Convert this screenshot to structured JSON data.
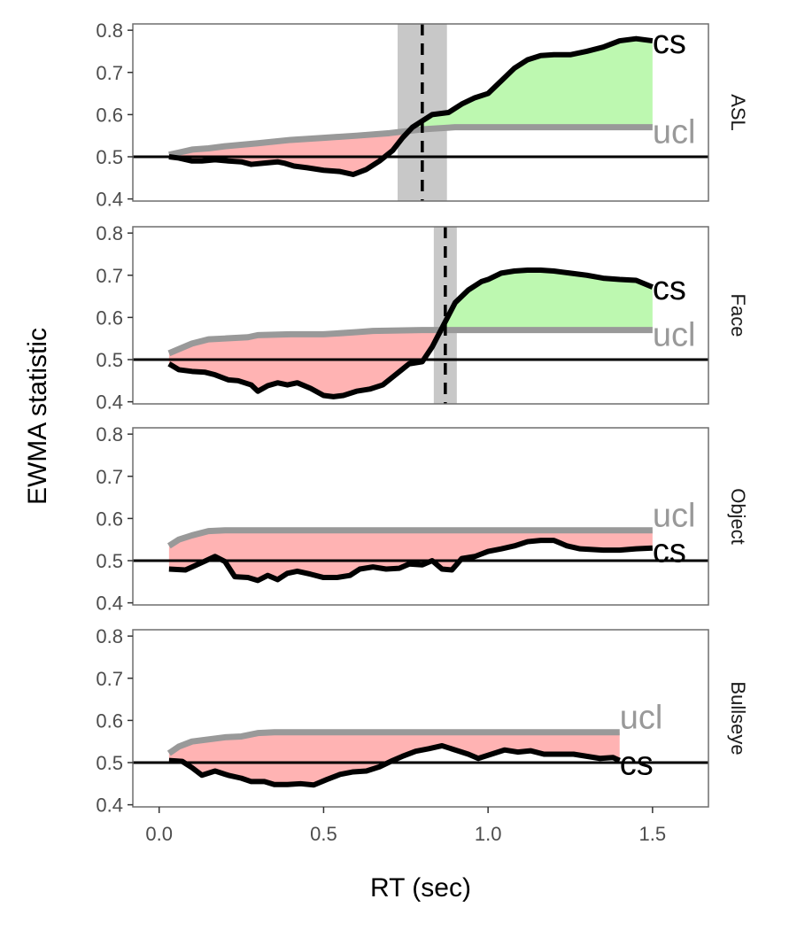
{
  "chart_data": {
    "type": "line",
    "xlabel": "RT (sec)",
    "ylabel": "EWMA statistic",
    "xlim": [
      -0.08,
      1.67
    ],
    "ylim": [
      0.395,
      0.815
    ],
    "x_ticks": [
      0.0,
      0.5,
      1.0,
      1.5
    ],
    "x_tick_labels": [
      "0.0",
      "0.5",
      "1.0",
      "1.5"
    ],
    "y_ticks": [
      0.4,
      0.5,
      0.6,
      0.7,
      0.8
    ],
    "y_tick_labels": [
      "0.4",
      "0.5",
      "0.6",
      "0.7",
      "0.8"
    ],
    "reference_line": 0.5,
    "grid": false,
    "colors": {
      "cs_line": "#000000",
      "ucl_line": "#999999",
      "fill_below": "#ffb3b3",
      "fill_above": "#bdf8b0",
      "band": "#c8c8c8",
      "panel_border": "#6e6e6e"
    },
    "end_labels": {
      "cs": "cs",
      "ucl": "ucl"
    },
    "panels": [
      {
        "label": "ASL",
        "cutoff": 0.8,
        "band": [
          0.725,
          0.875
        ],
        "cs": [
          [
            0.03,
            0.5
          ],
          [
            0.06,
            0.497
          ],
          [
            0.1,
            0.49
          ],
          [
            0.13,
            0.49
          ],
          [
            0.17,
            0.493
          ],
          [
            0.21,
            0.49
          ],
          [
            0.25,
            0.488
          ],
          [
            0.28,
            0.482
          ],
          [
            0.32,
            0.485
          ],
          [
            0.36,
            0.488
          ],
          [
            0.38,
            0.485
          ],
          [
            0.41,
            0.478
          ],
          [
            0.45,
            0.474
          ],
          [
            0.5,
            0.468
          ],
          [
            0.55,
            0.465
          ],
          [
            0.59,
            0.458
          ],
          [
            0.63,
            0.47
          ],
          [
            0.67,
            0.49
          ],
          [
            0.71,
            0.515
          ],
          [
            0.74,
            0.545
          ],
          [
            0.77,
            0.57
          ],
          [
            0.8,
            0.585
          ],
          [
            0.83,
            0.6
          ],
          [
            0.88,
            0.605
          ],
          [
            0.92,
            0.625
          ],
          [
            0.96,
            0.64
          ],
          [
            1.0,
            0.65
          ],
          [
            1.04,
            0.68
          ],
          [
            1.08,
            0.71
          ],
          [
            1.12,
            0.73
          ],
          [
            1.16,
            0.74
          ],
          [
            1.2,
            0.742
          ],
          [
            1.25,
            0.742
          ],
          [
            1.3,
            0.75
          ],
          [
            1.35,
            0.76
          ],
          [
            1.4,
            0.775
          ],
          [
            1.45,
            0.78
          ],
          [
            1.5,
            0.775
          ]
        ],
        "ucl": [
          [
            0.03,
            0.505
          ],
          [
            0.06,
            0.51
          ],
          [
            0.1,
            0.517
          ],
          [
            0.15,
            0.52
          ],
          [
            0.2,
            0.525
          ],
          [
            0.3,
            0.532
          ],
          [
            0.4,
            0.54
          ],
          [
            0.5,
            0.545
          ],
          [
            0.6,
            0.55
          ],
          [
            0.7,
            0.556
          ],
          [
            0.8,
            0.565
          ],
          [
            0.9,
            0.57
          ],
          [
            1.0,
            0.57
          ],
          [
            1.5,
            0.57
          ]
        ]
      },
      {
        "label": "Face",
        "cutoff": 0.87,
        "band": [
          0.835,
          0.905
        ],
        "cs": [
          [
            0.03,
            0.49
          ],
          [
            0.06,
            0.476
          ],
          [
            0.1,
            0.472
          ],
          [
            0.14,
            0.47
          ],
          [
            0.17,
            0.464
          ],
          [
            0.21,
            0.452
          ],
          [
            0.24,
            0.45
          ],
          [
            0.28,
            0.44
          ],
          [
            0.3,
            0.425
          ],
          [
            0.33,
            0.438
          ],
          [
            0.36,
            0.445
          ],
          [
            0.39,
            0.44
          ],
          [
            0.42,
            0.445
          ],
          [
            0.46,
            0.432
          ],
          [
            0.5,
            0.415
          ],
          [
            0.53,
            0.412
          ],
          [
            0.56,
            0.415
          ],
          [
            0.6,
            0.425
          ],
          [
            0.64,
            0.43
          ],
          [
            0.68,
            0.44
          ],
          [
            0.72,
            0.465
          ],
          [
            0.76,
            0.49
          ],
          [
            0.8,
            0.495
          ],
          [
            0.83,
            0.53
          ],
          [
            0.87,
            0.59
          ],
          [
            0.9,
            0.635
          ],
          [
            0.94,
            0.665
          ],
          [
            0.98,
            0.685
          ],
          [
            1.0,
            0.69
          ],
          [
            1.04,
            0.705
          ],
          [
            1.08,
            0.71
          ],
          [
            1.12,
            0.712
          ],
          [
            1.16,
            0.712
          ],
          [
            1.2,
            0.71
          ],
          [
            1.25,
            0.705
          ],
          [
            1.3,
            0.7
          ],
          [
            1.35,
            0.693
          ],
          [
            1.4,
            0.69
          ],
          [
            1.45,
            0.688
          ],
          [
            1.5,
            0.672
          ]
        ],
        "ucl": [
          [
            0.03,
            0.515
          ],
          [
            0.06,
            0.525
          ],
          [
            0.1,
            0.538
          ],
          [
            0.15,
            0.548
          ],
          [
            0.2,
            0.55
          ],
          [
            0.27,
            0.553
          ],
          [
            0.3,
            0.558
          ],
          [
            0.4,
            0.56
          ],
          [
            0.5,
            0.56
          ],
          [
            0.6,
            0.565
          ],
          [
            0.65,
            0.568
          ],
          [
            0.8,
            0.57
          ],
          [
            0.9,
            0.57
          ],
          [
            1.5,
            0.57
          ]
        ]
      },
      {
        "label": "Object",
        "cs": [
          [
            0.03,
            0.48
          ],
          [
            0.08,
            0.478
          ],
          [
            0.12,
            0.492
          ],
          [
            0.17,
            0.51
          ],
          [
            0.2,
            0.498
          ],
          [
            0.23,
            0.462
          ],
          [
            0.27,
            0.46
          ],
          [
            0.3,
            0.453
          ],
          [
            0.33,
            0.465
          ],
          [
            0.36,
            0.455
          ],
          [
            0.39,
            0.47
          ],
          [
            0.42,
            0.475
          ],
          [
            0.46,
            0.468
          ],
          [
            0.5,
            0.46
          ],
          [
            0.54,
            0.46
          ],
          [
            0.58,
            0.465
          ],
          [
            0.61,
            0.48
          ],
          [
            0.65,
            0.485
          ],
          [
            0.69,
            0.48
          ],
          [
            0.73,
            0.482
          ],
          [
            0.76,
            0.492
          ],
          [
            0.8,
            0.49
          ],
          [
            0.83,
            0.5
          ],
          [
            0.86,
            0.48
          ],
          [
            0.89,
            0.478
          ],
          [
            0.92,
            0.505
          ],
          [
            0.96,
            0.51
          ],
          [
            1.0,
            0.522
          ],
          [
            1.04,
            0.528
          ],
          [
            1.08,
            0.535
          ],
          [
            1.12,
            0.545
          ],
          [
            1.16,
            0.548
          ],
          [
            1.2,
            0.548
          ],
          [
            1.24,
            0.535
          ],
          [
            1.28,
            0.528
          ],
          [
            1.35,
            0.525
          ],
          [
            1.4,
            0.525
          ],
          [
            1.45,
            0.528
          ],
          [
            1.5,
            0.53
          ]
        ],
        "ucl": [
          [
            0.03,
            0.535
          ],
          [
            0.06,
            0.55
          ],
          [
            0.1,
            0.56
          ],
          [
            0.15,
            0.57
          ],
          [
            0.2,
            0.572
          ],
          [
            0.3,
            0.572
          ],
          [
            1.5,
            0.572
          ]
        ]
      },
      {
        "label": "Bullseye",
        "cs": [
          [
            0.03,
            0.505
          ],
          [
            0.07,
            0.503
          ],
          [
            0.1,
            0.488
          ],
          [
            0.13,
            0.47
          ],
          [
            0.17,
            0.48
          ],
          [
            0.21,
            0.47
          ],
          [
            0.25,
            0.463
          ],
          [
            0.28,
            0.455
          ],
          [
            0.32,
            0.455
          ],
          [
            0.35,
            0.448
          ],
          [
            0.39,
            0.448
          ],
          [
            0.43,
            0.45
          ],
          [
            0.47,
            0.447
          ],
          [
            0.51,
            0.46
          ],
          [
            0.55,
            0.472
          ],
          [
            0.59,
            0.478
          ],
          [
            0.63,
            0.48
          ],
          [
            0.67,
            0.49
          ],
          [
            0.71,
            0.505
          ],
          [
            0.74,
            0.515
          ],
          [
            0.78,
            0.527
          ],
          [
            0.82,
            0.533
          ],
          [
            0.86,
            0.54
          ],
          [
            0.9,
            0.53
          ],
          [
            0.94,
            0.52
          ],
          [
            0.97,
            0.51
          ],
          [
            1.01,
            0.52
          ],
          [
            1.05,
            0.53
          ],
          [
            1.09,
            0.525
          ],
          [
            1.13,
            0.528
          ],
          [
            1.17,
            0.52
          ],
          [
            1.21,
            0.52
          ],
          [
            1.26,
            0.52
          ],
          [
            1.3,
            0.515
          ],
          [
            1.34,
            0.51
          ],
          [
            1.38,
            0.512
          ],
          [
            1.4,
            0.505
          ]
        ],
        "ucl": [
          [
            0.03,
            0.522
          ],
          [
            0.06,
            0.538
          ],
          [
            0.1,
            0.55
          ],
          [
            0.15,
            0.555
          ],
          [
            0.2,
            0.56
          ],
          [
            0.25,
            0.562
          ],
          [
            0.3,
            0.57
          ],
          [
            0.35,
            0.572
          ],
          [
            0.4,
            0.572
          ],
          [
            1.4,
            0.572
          ]
        ]
      }
    ]
  }
}
